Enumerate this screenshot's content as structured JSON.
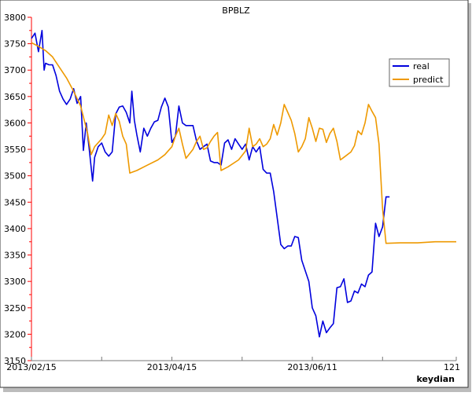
{
  "chart_data": {
    "type": "line",
    "title": "BPBLZ",
    "xlabel": "keydian",
    "ylabel": "",
    "x_range": [
      0,
      121
    ],
    "ylim": [
      3150,
      3800
    ],
    "y_ticks": [
      3150,
      3200,
      3250,
      3300,
      3350,
      3400,
      3450,
      3500,
      3550,
      3600,
      3650,
      3700,
      3750,
      3800
    ],
    "x_tick_labels": [
      {
        "x": 0,
        "label": "2013/02/15"
      },
      {
        "x": 40,
        "label": "2013/04/15"
      },
      {
        "x": 80,
        "label": "2013/06/11"
      },
      {
        "x": 121,
        "label": "121"
      }
    ],
    "x_minor_ticks": [
      0,
      20,
      40,
      60,
      80,
      100,
      121
    ],
    "grid": false,
    "legend_position": "top-right",
    "series": [
      {
        "name": "real",
        "color": "#0000dd",
        "points": [
          [
            0,
            3760
          ],
          [
            1,
            3770
          ],
          [
            2,
            3735
          ],
          [
            3,
            3775
          ],
          [
            3.6,
            3700
          ],
          [
            4,
            3713
          ],
          [
            5,
            3710
          ],
          [
            6,
            3710
          ],
          [
            7,
            3690
          ],
          [
            8,
            3660
          ],
          [
            9,
            3645
          ],
          [
            10,
            3635
          ],
          [
            11,
            3645
          ],
          [
            12,
            3665
          ],
          [
            13,
            3637
          ],
          [
            14,
            3650
          ],
          [
            14.8,
            3548
          ],
          [
            15.6,
            3600
          ],
          [
            16.5,
            3548
          ],
          [
            17.4,
            3490
          ],
          [
            18,
            3535
          ],
          [
            19,
            3555
          ],
          [
            20,
            3562
          ],
          [
            21,
            3545
          ],
          [
            22,
            3537
          ],
          [
            23,
            3545
          ],
          [
            24,
            3617
          ],
          [
            25,
            3630
          ],
          [
            26,
            3632
          ],
          [
            27,
            3620
          ],
          [
            28,
            3600
          ],
          [
            28.6,
            3660
          ],
          [
            29.3,
            3605
          ],
          [
            30,
            3578
          ],
          [
            31,
            3545
          ],
          [
            32,
            3590
          ],
          [
            33,
            3575
          ],
          [
            34,
            3590
          ],
          [
            35,
            3602
          ],
          [
            36,
            3605
          ],
          [
            37,
            3630
          ],
          [
            38,
            3647
          ],
          [
            39,
            3630
          ],
          [
            40,
            3563
          ],
          [
            41,
            3575
          ],
          [
            42,
            3632
          ],
          [
            43,
            3600
          ],
          [
            44,
            3595
          ],
          [
            45,
            3595
          ],
          [
            46,
            3595
          ],
          [
            47,
            3566
          ],
          [
            48,
            3550
          ],
          [
            49,
            3555
          ],
          [
            50,
            3560
          ],
          [
            51,
            3528
          ],
          [
            52,
            3525
          ],
          [
            53,
            3525
          ],
          [
            54,
            3520
          ],
          [
            55,
            3562
          ],
          [
            56,
            3568
          ],
          [
            57,
            3550
          ],
          [
            58,
            3570
          ],
          [
            59,
            3560
          ],
          [
            60,
            3550
          ],
          [
            61,
            3560
          ],
          [
            62,
            3530
          ],
          [
            63,
            3555
          ],
          [
            64,
            3545
          ],
          [
            65,
            3555
          ],
          [
            66,
            3512
          ],
          [
            67,
            3505
          ],
          [
            68,
            3505
          ],
          [
            69,
            3470
          ],
          [
            70,
            3420
          ],
          [
            71,
            3370
          ],
          [
            72,
            3362
          ],
          [
            73,
            3367
          ],
          [
            74,
            3367
          ],
          [
            75,
            3385
          ],
          [
            76,
            3383
          ],
          [
            77,
            3340
          ],
          [
            78,
            3320
          ],
          [
            79,
            3300
          ],
          [
            80,
            3250
          ],
          [
            81,
            3235
          ],
          [
            82,
            3195
          ],
          [
            83,
            3225
          ],
          [
            84,
            3203
          ],
          [
            85,
            3212
          ],
          [
            86,
            3220
          ],
          [
            87,
            3288
          ],
          [
            88,
            3290
          ],
          [
            89,
            3305
          ],
          [
            90,
            3260
          ],
          [
            91,
            3263
          ],
          [
            92,
            3282
          ],
          [
            93,
            3278
          ],
          [
            94,
            3295
          ],
          [
            95,
            3290
          ],
          [
            96,
            3312
          ],
          [
            97,
            3318
          ],
          [
            98,
            3410
          ],
          [
            99,
            3385
          ],
          [
            100,
            3403
          ],
          [
            101,
            3460
          ],
          [
            102,
            3460
          ]
        ]
      },
      {
        "name": "predict",
        "color": "#ee9900",
        "points": [
          [
            0,
            3752
          ],
          [
            2,
            3745
          ],
          [
            4,
            3737
          ],
          [
            6,
            3725
          ],
          [
            8,
            3705
          ],
          [
            10,
            3685
          ],
          [
            12,
            3660
          ],
          [
            14,
            3632
          ],
          [
            16,
            3580
          ],
          [
            17,
            3540
          ],
          [
            18,
            3555
          ],
          [
            20,
            3570
          ],
          [
            21,
            3580
          ],
          [
            22,
            3615
          ],
          [
            23,
            3595
          ],
          [
            24,
            3618
          ],
          [
            25,
            3603
          ],
          [
            26,
            3575
          ],
          [
            27,
            3560
          ],
          [
            28,
            3505
          ],
          [
            30,
            3510
          ],
          [
            33,
            3520
          ],
          [
            36,
            3530
          ],
          [
            38,
            3540
          ],
          [
            40,
            3555
          ],
          [
            41,
            3575
          ],
          [
            42,
            3590
          ],
          [
            43,
            3560
          ],
          [
            44,
            3533
          ],
          [
            46,
            3550
          ],
          [
            47,
            3565
          ],
          [
            48,
            3575
          ],
          [
            49,
            3550
          ],
          [
            50,
            3553
          ],
          [
            51,
            3565
          ],
          [
            52,
            3575
          ],
          [
            53,
            3582
          ],
          [
            54,
            3510
          ],
          [
            56,
            3517
          ],
          [
            59,
            3530
          ],
          [
            61,
            3547
          ],
          [
            62,
            3590
          ],
          [
            63,
            3555
          ],
          [
            64,
            3560
          ],
          [
            65,
            3570
          ],
          [
            66,
            3555
          ],
          [
            67,
            3560
          ],
          [
            68,
            3570
          ],
          [
            69,
            3597
          ],
          [
            70,
            3577
          ],
          [
            71,
            3600
          ],
          [
            72,
            3635
          ],
          [
            73,
            3620
          ],
          [
            74,
            3605
          ],
          [
            75,
            3580
          ],
          [
            76,
            3545
          ],
          [
            77,
            3555
          ],
          [
            78,
            3570
          ],
          [
            79,
            3610
          ],
          [
            80,
            3590
          ],
          [
            81,
            3565
          ],
          [
            82,
            3590
          ],
          [
            83,
            3588
          ],
          [
            84,
            3563
          ],
          [
            85,
            3580
          ],
          [
            86,
            3590
          ],
          [
            87,
            3565
          ],
          [
            88,
            3530
          ],
          [
            89,
            3535
          ],
          [
            91,
            3545
          ],
          [
            92,
            3557
          ],
          [
            93,
            3585
          ],
          [
            94,
            3578
          ],
          [
            95,
            3600
          ],
          [
            96,
            3635
          ],
          [
            97,
            3622
          ],
          [
            98,
            3610
          ],
          [
            99,
            3560
          ],
          [
            100,
            3438
          ],
          [
            101,
            3372
          ],
          [
            105,
            3373
          ],
          [
            110,
            3373
          ],
          [
            115,
            3375
          ],
          [
            121,
            3375
          ]
        ]
      }
    ]
  }
}
